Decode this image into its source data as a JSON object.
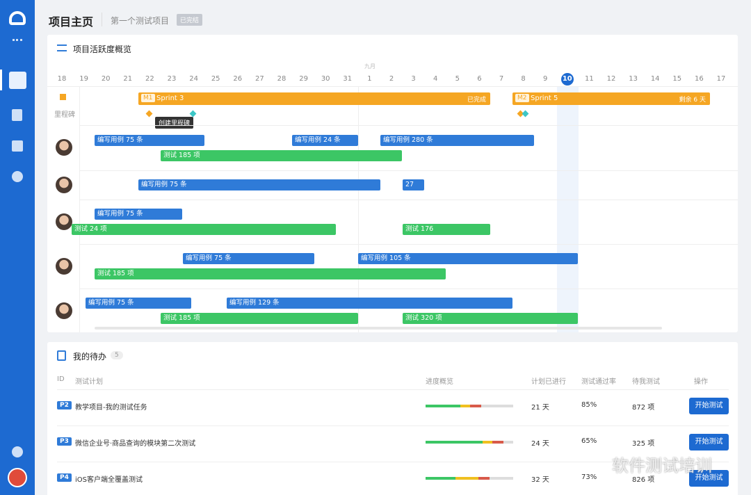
{
  "header": {
    "title": "项目主页",
    "project": "第一个测试项目",
    "status": "已完结"
  },
  "activity": {
    "title": "项目活跃度概览",
    "month": "九月",
    "dates": [
      "18",
      "19",
      "20",
      "21",
      "22",
      "23",
      "24",
      "25",
      "26",
      "27",
      "28",
      "29",
      "30",
      "31",
      "1",
      "2",
      "3",
      "4",
      "5",
      "6",
      "7",
      "8",
      "9",
      "10",
      "11",
      "12",
      "13",
      "14",
      "15",
      "16",
      "17"
    ],
    "milestone_label": "里程碑",
    "milestones": [
      {
        "code": "M1",
        "name": "Sprint 3",
        "status": "已完成"
      },
      {
        "code": "M2",
        "name": "Sprint 5",
        "status": "剩余 6 天"
      }
    ],
    "tooltip": "创建里程碑",
    "members": [
      {
        "bars": [
          "编写用例 75 条",
          "编写用例 24 条",
          "编写用例 280 条",
          "测试 185 项"
        ]
      },
      {
        "bars": [
          "编写用例 75 条",
          "27"
        ]
      },
      {
        "bars": [
          "编写用例 75 条",
          "测试 24 项",
          "测试 176"
        ]
      },
      {
        "bars": [
          "编写用例 75 条",
          "编写用例 105 条",
          "测试 185 项"
        ]
      },
      {
        "bars": [
          "编写用例 75 条",
          "编写用例 129 条",
          "测试 185 项",
          "测试 320 项"
        ]
      }
    ]
  },
  "todo": {
    "title": "我的待办",
    "count": "5",
    "columns": [
      "ID",
      "测试计划",
      "进度概览",
      "计划已进行",
      "测试通过率",
      "待我测试",
      "操作"
    ],
    "rows": [
      {
        "id": "P2",
        "plan": "教学项目-我的测试任务",
        "elapsed": "21 天",
        "pass_rate": "85%",
        "pending": "872 项",
        "action": "开始测试"
      },
      {
        "id": "P3",
        "plan": "微信企业号·商品查询的模块第二次测试",
        "elapsed": "24 天",
        "pass_rate": "65%",
        "pending": "325 项",
        "action": "开始测试"
      },
      {
        "id": "P4",
        "plan": "iOS客户端全覆盖测试",
        "elapsed": "32 天",
        "pass_rate": "73%",
        "pending": "826 项",
        "action": "开始测试"
      }
    ]
  },
  "watermark": "软件测试培训"
}
